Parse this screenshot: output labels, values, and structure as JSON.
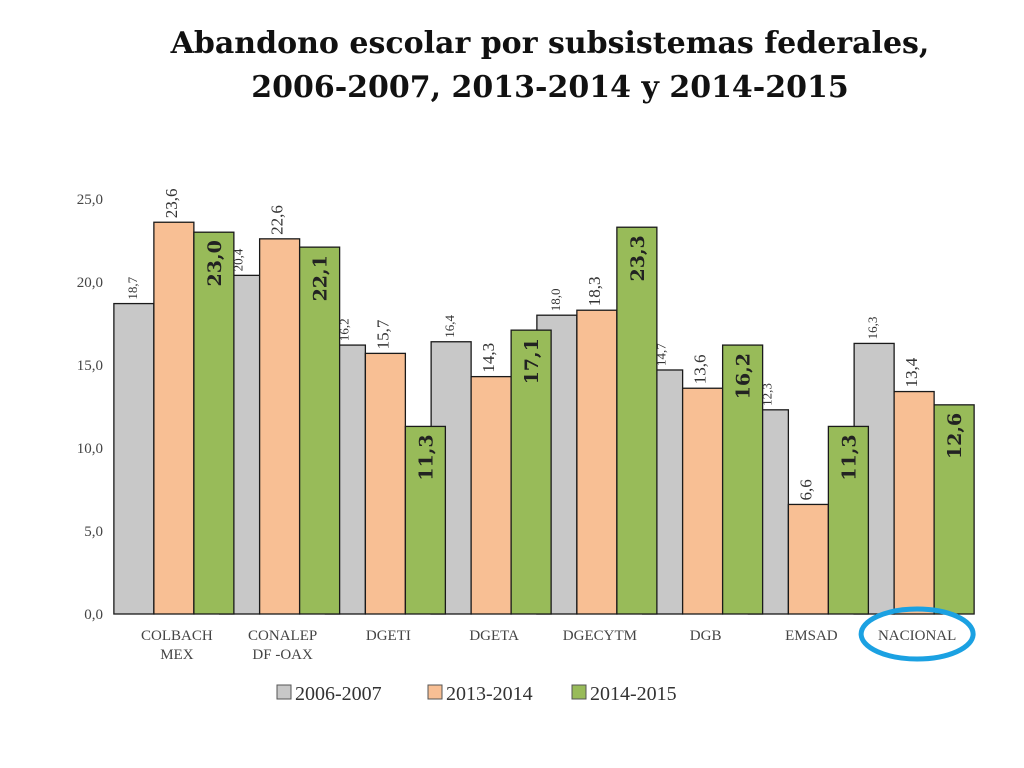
{
  "chart_data": {
    "type": "bar",
    "title_lines": [
      "Abandono escolar por subsistemas federales,",
      "2006-2007, 2013-2014 y 2014-2015"
    ],
    "categories": [
      [
        "COLBACH",
        "MEX"
      ],
      [
        "CONALEP",
        "DF -OAX"
      ],
      [
        "DGETI"
      ],
      [
        "DGETA"
      ],
      [
        "DGECYTM"
      ],
      [
        "DGB"
      ],
      [
        "EMSAD"
      ],
      [
        "NACIONAL"
      ]
    ],
    "series": [
      {
        "name": "2006-2007",
        "color": "#C8C8C8",
        "values": [
          18.7,
          20.4,
          16.2,
          16.4,
          18.0,
          14.7,
          12.3,
          16.3
        ],
        "labels": [
          "18,7",
          "20,4",
          "16,2",
          "16,4",
          "18,0",
          "14,7",
          "12,3",
          "16,3"
        ]
      },
      {
        "name": "2013-2014",
        "color": "#F8BF94",
        "values": [
          23.6,
          22.6,
          15.7,
          14.3,
          18.3,
          13.6,
          6.6,
          13.4
        ],
        "labels": [
          "23,6",
          "22,6",
          "15,7",
          "14,3",
          "18,3",
          "13,6",
          "6,6",
          "13,4"
        ]
      },
      {
        "name": "2014-2015",
        "color": "#98BB59",
        "values": [
          23.0,
          22.1,
          11.3,
          17.1,
          23.3,
          16.2,
          11.3,
          12.6
        ],
        "labels": [
          "23,0",
          "22,1",
          "11,3",
          "17,1",
          "23,3",
          "16,2",
          "11,3",
          "12,6"
        ]
      }
    ],
    "ylim": [
      0,
      25
    ],
    "yticks": [
      0,
      5,
      10,
      15,
      20,
      25
    ],
    "ytick_labels": [
      "0,0",
      "5,0",
      "10,0",
      "15,0",
      "20,0",
      "25,0"
    ],
    "legend_position": "bottom",
    "highlighted_category": "NACIONAL",
    "highlight_color": "#1BA1E2",
    "grid": false
  }
}
